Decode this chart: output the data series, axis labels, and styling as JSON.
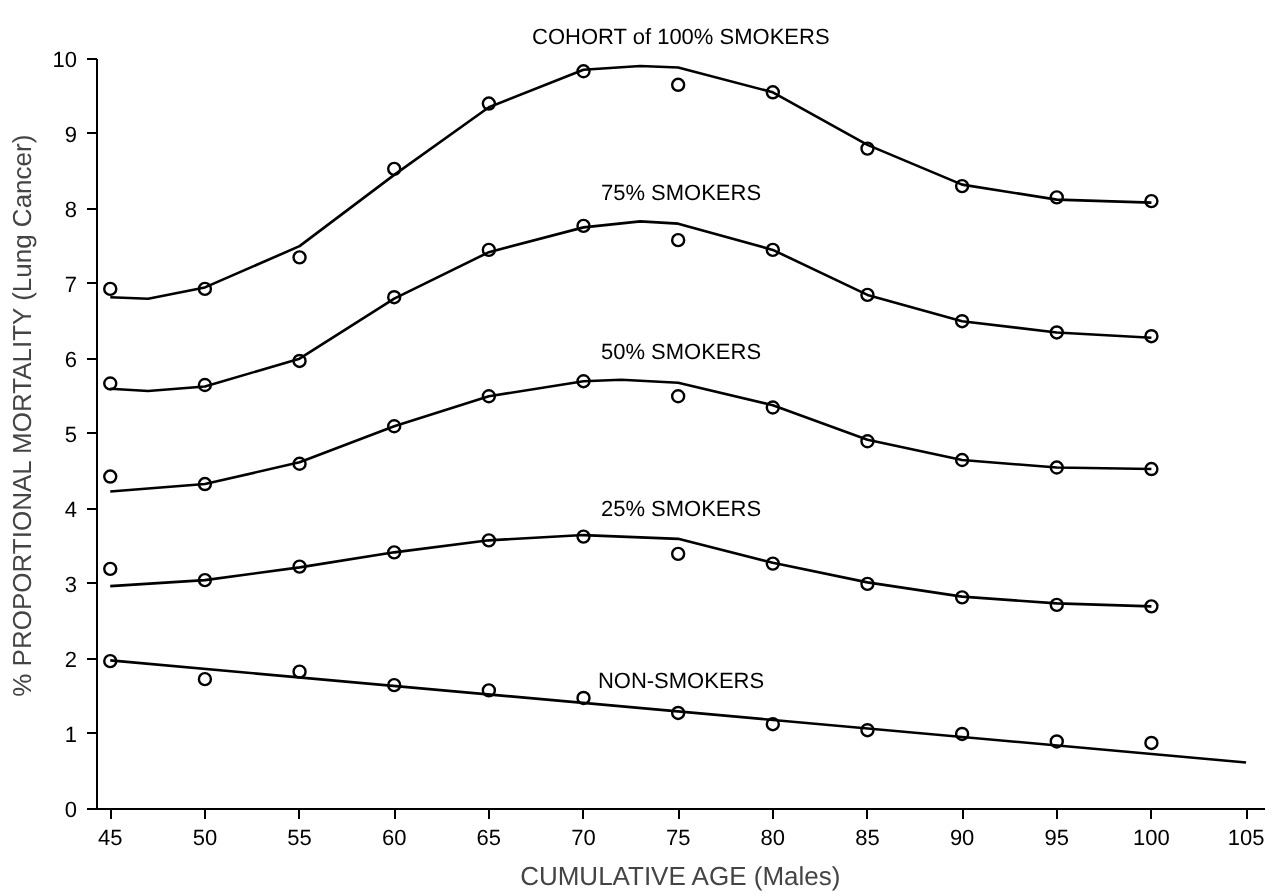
{
  "chart_data": {
    "type": "scatter",
    "xlabel": "CUMULATIVE AGE (Males)",
    "ylabel": "% PROPORTIONAL MORTALITY (Lung Cancer)",
    "xlim": [
      44.3,
      106
    ],
    "ylim": [
      0,
      10
    ],
    "xticks": [
      45,
      50,
      55,
      60,
      65,
      70,
      75,
      80,
      85,
      90,
      95,
      100,
      105
    ],
    "yticks": [
      0,
      1,
      2,
      3,
      4,
      5,
      6,
      7,
      8,
      9,
      10
    ],
    "grid": false,
    "line_style": "solid",
    "x": [
      45,
      50,
      55,
      60,
      65,
      70,
      75,
      80,
      85,
      90,
      95,
      100
    ],
    "series": [
      {
        "color": "#000000",
        "marker": "circle",
        "values": [
          6.93,
          6.93,
          7.35,
          8.53,
          9.4,
          9.83,
          9.65,
          9.55,
          8.8,
          8.3,
          8.15,
          8.1
        ]
      },
      {
        "color": "#000000",
        "marker": "circle",
        "values": [
          5.67,
          5.65,
          5.97,
          6.82,
          7.45,
          7.77,
          7.58,
          7.45,
          6.85,
          6.5,
          6.35,
          6.3
        ]
      },
      {
        "color": "#000000",
        "marker": "circle",
        "values": [
          4.43,
          4.33,
          4.6,
          5.1,
          5.5,
          5.7,
          5.5,
          5.35,
          4.9,
          4.65,
          4.55,
          4.53
        ]
      },
      {
        "color": "#000000",
        "marker": "circle",
        "values": [
          3.2,
          3.05,
          3.23,
          3.42,
          3.58,
          3.63,
          3.4,
          3.27,
          3.0,
          2.82,
          2.72,
          2.7
        ]
      },
      {
        "color": "#000000",
        "marker": "circle",
        "values": [
          1.97,
          1.73,
          1.83,
          1.65,
          1.58,
          1.48,
          1.28,
          1.13,
          1.05,
          1.0,
          0.9,
          0.88
        ]
      },
      {
        "type": "line",
        "name": "COHORT of 100% SMOKERS",
        "color": "#000000",
        "marker": "none",
        "x": [
          45,
          47,
          50,
          55,
          60,
          65,
          70,
          73,
          75,
          80,
          85,
          90,
          95,
          100
        ],
        "values": [
          6.82,
          6.8,
          6.95,
          7.5,
          8.45,
          9.35,
          9.85,
          9.9,
          9.88,
          9.55,
          8.85,
          8.32,
          8.12,
          8.08
        ]
      },
      {
        "type": "line",
        "name": "75% SMOKERS",
        "color": "#000000",
        "marker": "none",
        "x": [
          45,
          47,
          50,
          55,
          60,
          65,
          70,
          73,
          75,
          80,
          85,
          90,
          95,
          100
        ],
        "values": [
          5.6,
          5.57,
          5.63,
          6.0,
          6.8,
          7.42,
          7.75,
          7.83,
          7.8,
          7.45,
          6.85,
          6.5,
          6.35,
          6.28
        ]
      },
      {
        "type": "line",
        "name": "50% SMOKERS",
        "color": "#000000",
        "marker": "none",
        "x": [
          45,
          50,
          55,
          60,
          65,
          70,
          72,
          75,
          80,
          85,
          90,
          95,
          100
        ],
        "values": [
          4.23,
          4.33,
          4.62,
          5.1,
          5.5,
          5.7,
          5.72,
          5.68,
          5.38,
          4.92,
          4.65,
          4.55,
          4.53
        ]
      },
      {
        "type": "line",
        "name": "25% SMOKERS",
        "color": "#000000",
        "marker": "none",
        "x": [
          45,
          50,
          55,
          60,
          65,
          70,
          75,
          80,
          85,
          90,
          95,
          100
        ],
        "values": [
          2.97,
          3.05,
          3.22,
          3.42,
          3.58,
          3.65,
          3.6,
          3.28,
          3.02,
          2.83,
          2.74,
          2.7
        ]
      },
      {
        "type": "line",
        "name": "NON-SMOKERS",
        "color": "#000000",
        "marker": "none",
        "x": [
          45,
          105
        ],
        "values": [
          1.98,
          0.62
        ]
      }
    ]
  }
}
